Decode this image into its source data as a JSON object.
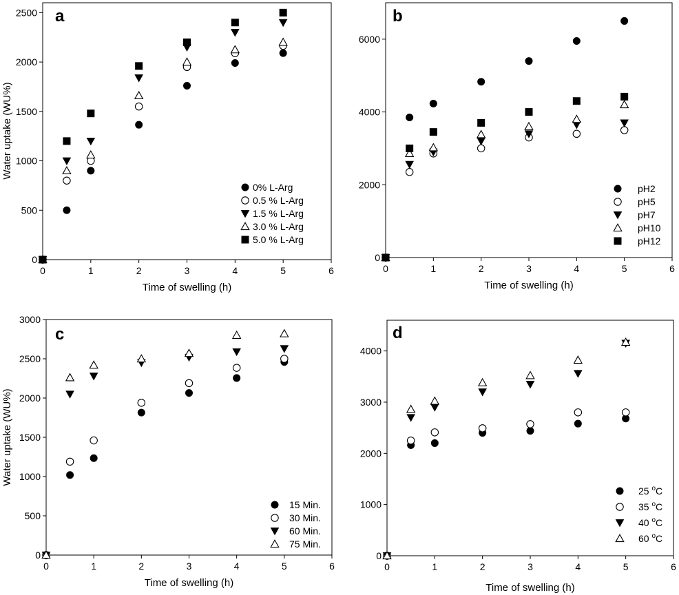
{
  "chart_data": [
    {
      "type": "scatter",
      "panel_label": "a",
      "xlabel": "Time of swelling (h)",
      "ylabel": "Water uptake  (WU%)",
      "xlim": [
        0,
        6
      ],
      "ylim": [
        0,
        2600
      ],
      "xticks": [
        "0",
        "1",
        "2",
        "3",
        "4",
        "5",
        "6"
      ],
      "yticks": [
        0,
        500,
        1000,
        1500,
        2000,
        2500
      ],
      "legend_position": "bottom-right",
      "x": [
        0,
        0.5,
        1,
        2,
        3,
        4,
        5
      ],
      "series": [
        {
          "name": "0% L-Arg",
          "marker": "filled-circle",
          "values": [
            0,
            500,
            900,
            1365,
            1760,
            1990,
            2090
          ]
        },
        {
          "name": "0.5 % L-Arg",
          "marker": "open-circle",
          "values": [
            0,
            800,
            1000,
            1550,
            1950,
            2090,
            2165
          ]
        },
        {
          "name": "1.5 % L-Arg",
          "marker": "filled-triangle-down",
          "values": [
            0,
            1000,
            1200,
            1840,
            2150,
            2300,
            2400
          ]
        },
        {
          "name": "3.0 % L-Arg",
          "marker": "open-triangle-up",
          "values": [
            0,
            900,
            1060,
            1660,
            2000,
            2125,
            2200
          ]
        },
        {
          "name": "5.0 % L-Arg",
          "marker": "filled-square",
          "values": [
            0,
            1200,
            1480,
            1960,
            2200,
            2400,
            2500
          ]
        }
      ]
    },
    {
      "type": "scatter",
      "panel_label": "b",
      "xlabel": "Time of swelling (h)",
      "ylabel": "",
      "xlim": [
        0,
        6
      ],
      "ylim": [
        0,
        7000
      ],
      "xticks": [
        "0",
        "1",
        "2",
        "3",
        "4",
        "5",
        "6"
      ],
      "yticks": [
        0,
        2000,
        4000,
        6000
      ],
      "legend_position": "bottom-right",
      "x": [
        0,
        0.5,
        1,
        2,
        3,
        4,
        5
      ],
      "series": [
        {
          "name": "pH2",
          "marker": "filled-circle",
          "values": [
            0,
            3850,
            4230,
            4830,
            5400,
            5950,
            6500
          ]
        },
        {
          "name": "pH5",
          "marker": "open-circle",
          "values": [
            0,
            2350,
            2860,
            3000,
            3300,
            3400,
            3500
          ]
        },
        {
          "name": "pH7",
          "marker": "filled-triangle-down",
          "values": [
            0,
            2560,
            2900,
            3200,
            3400,
            3650,
            3700
          ]
        },
        {
          "name": "pH10",
          "marker": "open-triangle-up",
          "values": [
            0,
            2860,
            3020,
            3380,
            3600,
            3800,
            4200
          ]
        },
        {
          "name": "pH12",
          "marker": "filled-square",
          "values": [
            0,
            3000,
            3450,
            3700,
            4000,
            4300,
            4420
          ]
        }
      ]
    },
    {
      "type": "scatter",
      "panel_label": "c",
      "xlabel": "Time of swelling (h)",
      "ylabel": "Water uptake  (WU%)",
      "xlim": [
        0,
        6
      ],
      "ylim": [
        0,
        3000
      ],
      "xticks": [
        "0",
        "1",
        "2",
        "3",
        "4",
        "5",
        "6"
      ],
      "yticks": [
        0,
        500,
        1000,
        1500,
        2000,
        2500,
        3000
      ],
      "legend_position": "bottom-right",
      "x": [
        0,
        0.5,
        1,
        2,
        3,
        4,
        5
      ],
      "series": [
        {
          "name": "15 Min.",
          "marker": "filled-circle",
          "values": [
            0,
            1020,
            1235,
            1815,
            2065,
            2255,
            2460
          ]
        },
        {
          "name": "30 Min.",
          "marker": "open-circle",
          "values": [
            0,
            1190,
            1460,
            1940,
            2190,
            2385,
            2500
          ]
        },
        {
          "name": "60 Min.",
          "marker": "filled-triangle-down",
          "values": [
            0,
            2050,
            2280,
            2450,
            2520,
            2590,
            2630
          ]
        },
        {
          "name": "75 Min.",
          "marker": "open-triangle-up",
          "values": [
            0,
            2260,
            2420,
            2500,
            2570,
            2800,
            2820
          ]
        }
      ]
    },
    {
      "type": "scatter",
      "panel_label": "d",
      "xlabel": "Time of swelling (h)",
      "ylabel": "",
      "xlim": [
        0,
        6
      ],
      "ylim": [
        0,
        4600
      ],
      "xticks": [
        "0",
        "1",
        "2",
        "3",
        "4",
        "5",
        "6"
      ],
      "yticks": [
        0,
        1000,
        2000,
        3000,
        4000
      ],
      "legend_position": "bottom-right",
      "x": [
        0,
        0.5,
        1,
        2,
        3,
        4,
        5
      ],
      "series": [
        {
          "name": "25 °C",
          "label_main": "25 ",
          "label_sup": "o",
          "label_tail": "C",
          "marker": "filled-circle",
          "values": [
            0,
            2160,
            2200,
            2400,
            2440,
            2580,
            2680
          ]
        },
        {
          "name": "35 °C",
          "label_main": "35 ",
          "label_sup": "o",
          "label_tail": "C",
          "marker": "open-circle",
          "values": [
            0,
            2250,
            2410,
            2490,
            2570,
            2800,
            2800
          ]
        },
        {
          "name": "40 °C",
          "label_main": "40 ",
          "label_sup": "o",
          "label_tail": "C",
          "marker": "filled-triangle-down",
          "values": [
            0,
            2700,
            2900,
            3200,
            3350,
            3560,
            4150
          ]
        },
        {
          "name": "60 °C",
          "label_main": "60 ",
          "label_sup": "o",
          "label_tail": "C",
          "marker": "open-triangle-up",
          "values": [
            0,
            2860,
            3020,
            3380,
            3520,
            3820,
            4170
          ]
        }
      ]
    }
  ]
}
